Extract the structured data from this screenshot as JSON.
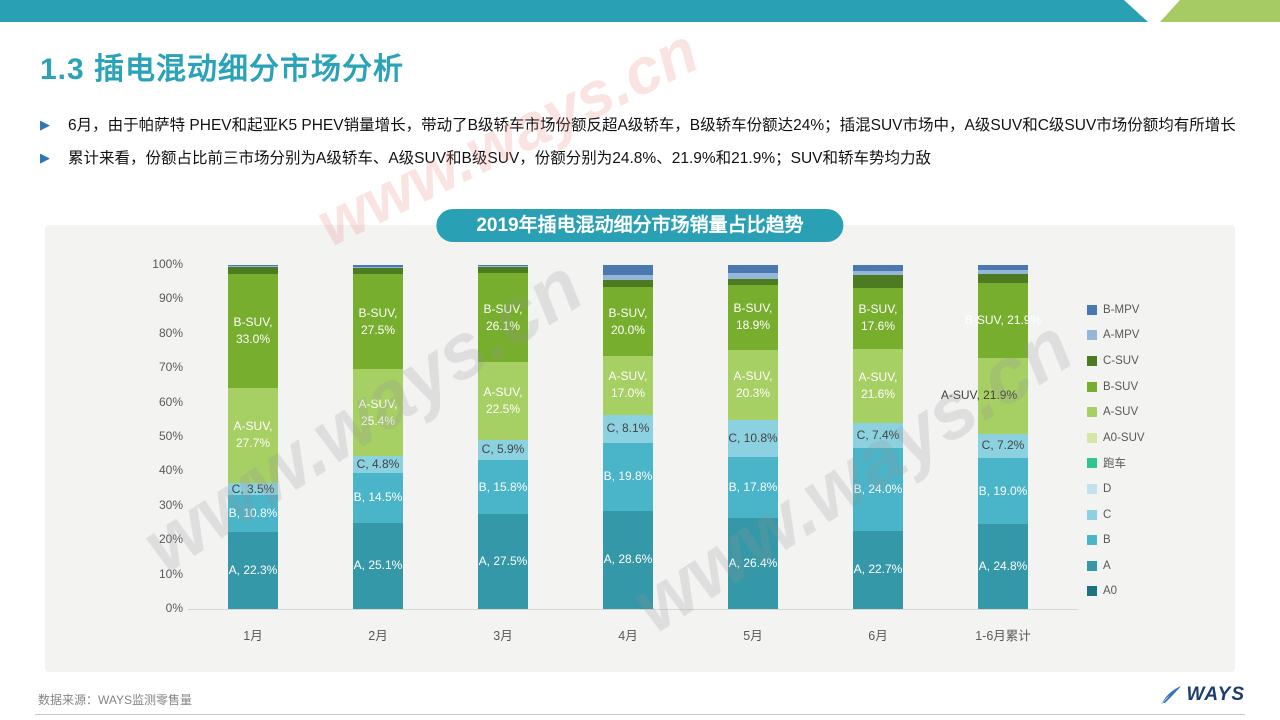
{
  "page": {
    "title": "1.3 插电混动细分市场分析",
    "bullets": [
      "6月，由于帕萨特 PHEV和起亚K5 PHEV销量增长，带动了B级轿车市场份额反超A级轿车，B级轿车份额达24%；插混SUV市场中，A级SUV和C级SUV市场份额均有所增长",
      "累计来看，份额占比前三市场分别为A级轿车、A级SUV和B级SUV，份额分别为24.8%、21.9%和21.9%；SUV和轿车势均力敌"
    ],
    "watermark_text": "www.ways.cn",
    "footer": {
      "source": "数据来源：WAYS监测零售量",
      "logo_text": "WAYS"
    },
    "accent_teal": "#2aa0b5",
    "accent_green": "#a6cb64"
  },
  "chart_data": {
    "type": "bar",
    "subtype": "stacked-100-percent",
    "title": "2019年插电混动细分市场销量占比趋势",
    "categories": [
      "1月",
      "2月",
      "3月",
      "4月",
      "5月",
      "6月",
      "1-6月累计"
    ],
    "y_ticks": [
      "100%",
      "90%",
      "80%",
      "70%",
      "60%",
      "50%",
      "40%",
      "30%",
      "20%",
      "10%",
      "0%"
    ],
    "ylim": [
      0,
      100
    ],
    "grid": false,
    "legend_position": "right",
    "legend": [
      "B-MPV",
      "A-MPV",
      "C-SUV",
      "B-SUV",
      "A-SUV",
      "A0-SUV",
      "跑车",
      "D",
      "C",
      "B",
      "A",
      "A0"
    ],
    "colors": {
      "B-MPV": "#4b78ae",
      "A-MPV": "#93b6d9",
      "C-SUV": "#4d7b22",
      "B-SUV": "#78ae2e",
      "A-SUV": "#a6cf64",
      "A0-SUV": "#d4e7a6",
      "跑车": "#2fc78e",
      "D": "#c3e1eb",
      "C": "#8bd1df",
      "B": "#4ab4c8",
      "A": "#3598a8",
      "A0": "#1d7280"
    },
    "series": [
      {
        "name": "A0",
        "values": [
          0,
          0,
          0,
          0,
          0,
          0,
          0
        ],
        "labels": null,
        "label_color": "#ffffff"
      },
      {
        "name": "A",
        "values": [
          22.3,
          25.1,
          27.5,
          28.6,
          26.4,
          22.7,
          24.8
        ],
        "labels": [
          [
            "A, 22.3%"
          ],
          [
            "A, 25.1%"
          ],
          [
            "A, 27.5%"
          ],
          [
            "A, 28.6%"
          ],
          [
            "A, 26.4%"
          ],
          [
            "A, 22.7%"
          ],
          [
            "A, 24.8%"
          ]
        ],
        "label_color": "#ffffff"
      },
      {
        "name": "B",
        "values": [
          10.8,
          14.5,
          15.8,
          19.8,
          17.8,
          24.0,
          19.0
        ],
        "labels": [
          [
            "B, 10.8%"
          ],
          [
            "B, 14.5%"
          ],
          [
            "B, 15.8%"
          ],
          [
            "B, 19.8%"
          ],
          [
            "B, 17.8%"
          ],
          [
            "B, 24.0%"
          ],
          [
            "B, 19.0%"
          ]
        ],
        "label_color": "#ffffff"
      },
      {
        "name": "C",
        "values": [
          3.5,
          4.8,
          5.9,
          8.1,
          10.8,
          7.4,
          7.2
        ],
        "labels": [
          [
            "C, 3.5%"
          ],
          [
            "C, 4.8%"
          ],
          [
            "C, 5.9%"
          ],
          [
            "C, 8.1%"
          ],
          [
            "C, 10.8%"
          ],
          [
            "C, 7.4%"
          ],
          [
            "C, 7.2%"
          ]
        ],
        "label_color": "#444444"
      },
      {
        "name": "D",
        "values": [
          0,
          0,
          0,
          0,
          0,
          0,
          0
        ],
        "labels": null,
        "label_color": "#444444"
      },
      {
        "name": "跑车",
        "values": [
          0,
          0,
          0,
          0,
          0,
          0,
          0
        ],
        "labels": null,
        "label_color": "#ffffff"
      },
      {
        "name": "A0-SUV",
        "values": [
          0,
          0,
          0,
          0,
          0,
          0,
          0
        ],
        "labels": null,
        "label_color": "#444444"
      },
      {
        "name": "A-SUV",
        "values": [
          27.7,
          25.4,
          22.5,
          17.0,
          20.3,
          21.6,
          21.9
        ],
        "labels": [
          [
            "A-SUV,",
            "27.7%"
          ],
          [
            "A-SUV,",
            "25.4%"
          ],
          [
            "A-SUV,",
            "22.5%"
          ],
          [
            "A-SUV,",
            "17.0%"
          ],
          [
            "A-SUV,",
            "20.3%"
          ],
          [
            "A-SUV,",
            "21.6%"
          ],
          [
            "A-SUV, 21.9%"
          ]
        ],
        "label_color": [
          "#ffffff",
          "#ffffff",
          "#ffffff",
          "#ffffff",
          "#ffffff",
          "#ffffff",
          "#3f3f3f"
        ]
      },
      {
        "name": "B-SUV",
        "values": [
          33.0,
          27.5,
          26.1,
          20.0,
          18.9,
          17.6,
          21.9
        ],
        "labels": [
          [
            "B-SUV,",
            "33.0%"
          ],
          [
            "B-SUV,",
            "27.5%"
          ],
          [
            "B-SUV,",
            "26.1%"
          ],
          [
            "B-SUV,",
            "20.0%"
          ],
          [
            "B-SUV,",
            "18.9%"
          ],
          [
            "B-SUV,",
            "17.6%"
          ],
          [
            "B-SUV, 21.9%"
          ]
        ],
        "label_color": "#ffffff"
      },
      {
        "name": "C-SUV",
        "values": [
          2.1,
          2.0,
          1.8,
          2.1,
          1.7,
          3.7,
          2.5
        ],
        "labels": null,
        "label_color": "#ffffff"
      },
      {
        "name": "A-MPV",
        "values": [
          0.2,
          0.2,
          0.1,
          1.6,
          1.7,
          1.3,
          1.2
        ],
        "labels": null,
        "label_color": "#444444"
      },
      {
        "name": "B-MPV",
        "values": [
          0.4,
          0.5,
          0.3,
          2.8,
          2.4,
          1.7,
          1.5
        ],
        "labels": null,
        "label_color": "#ffffff"
      }
    ]
  }
}
